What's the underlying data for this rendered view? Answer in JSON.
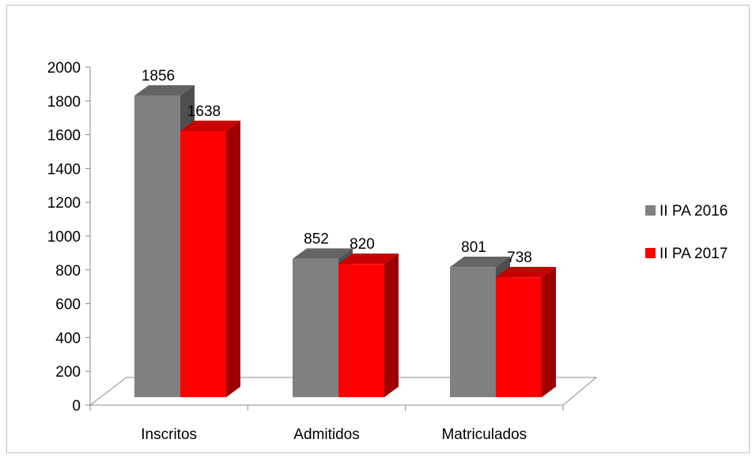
{
  "chart_data": {
    "type": "bar",
    "categories": [
      "Inscritos",
      "Admitidos",
      "Matriculados"
    ],
    "series": [
      {
        "name": "II PA 2016",
        "values": [
          1856,
          852,
          801
        ],
        "color": "#808080"
      },
      {
        "name": "II PA 2017",
        "values": [
          1638,
          820,
          738
        ],
        "color": "#ff0000"
      }
    ],
    "y_ticks": [
      "0",
      "200",
      "400",
      "600",
      "800",
      "1000",
      "1200",
      "1400",
      "1600",
      "1800",
      "2000"
    ],
    "ylim": [
      0,
      2000
    ],
    "legend_position": "right",
    "grid": false,
    "style": "3d-clustered-column"
  }
}
